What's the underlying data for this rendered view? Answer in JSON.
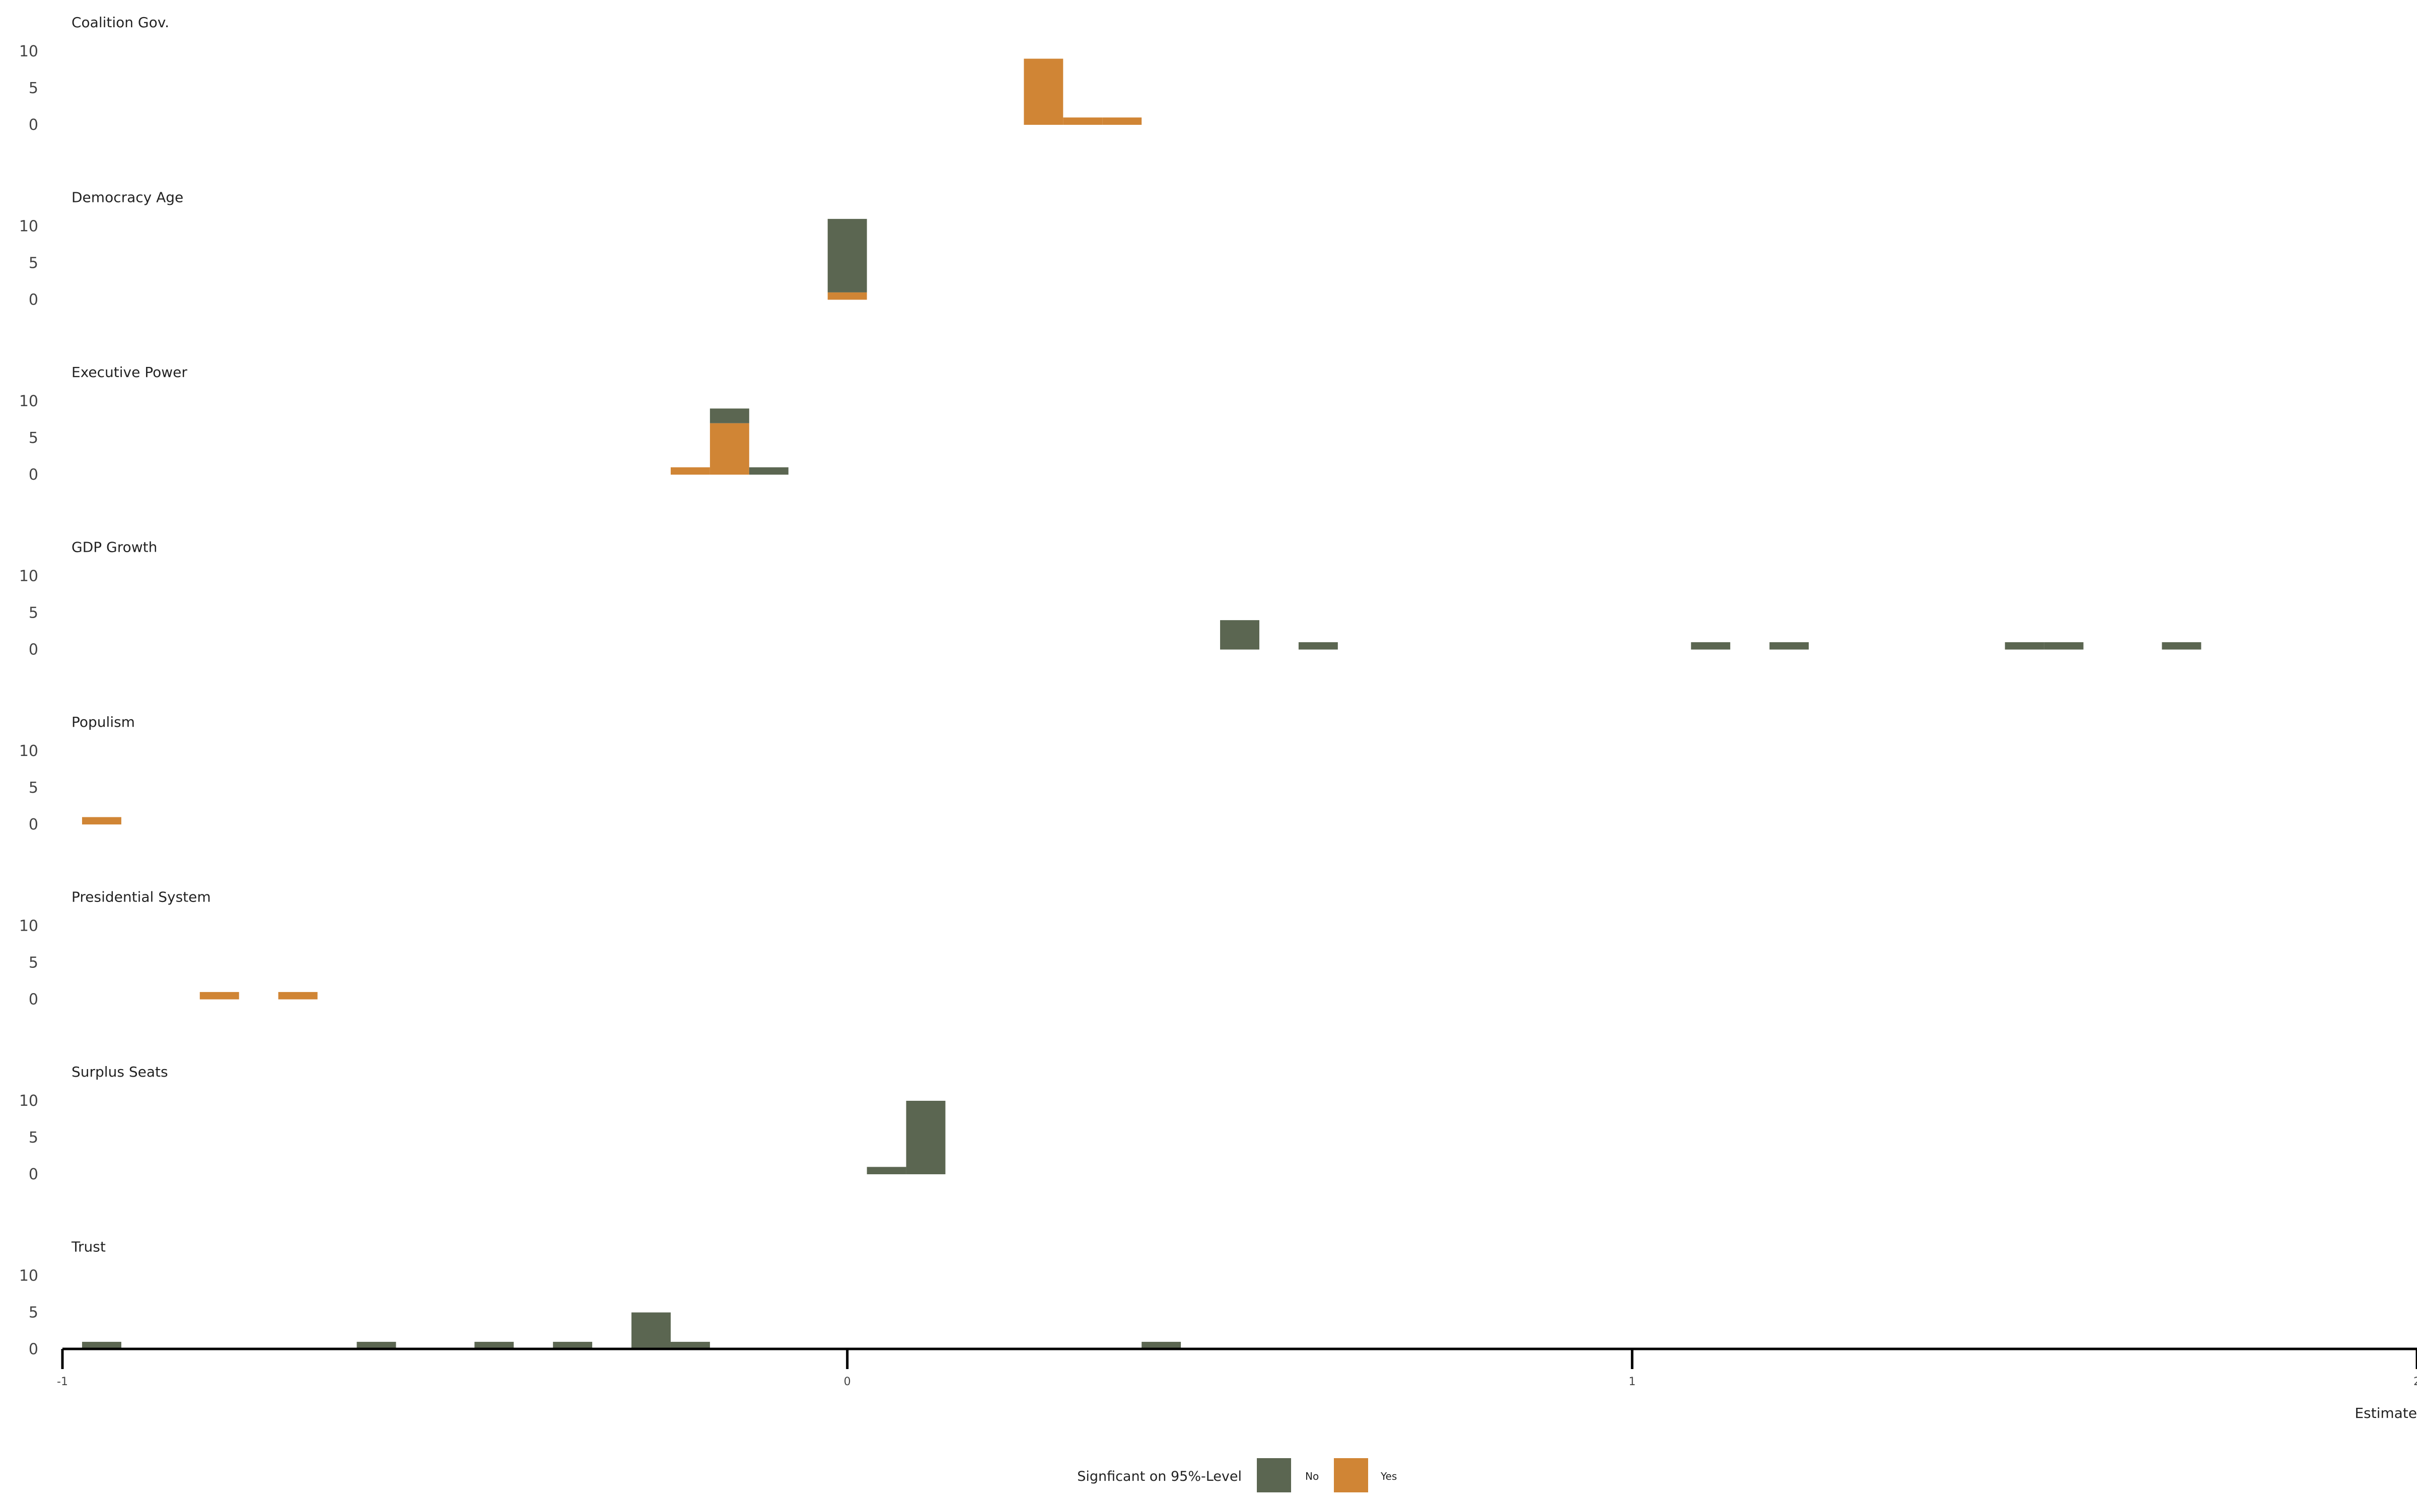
{
  "chart_data": {
    "type": "histogram",
    "facet_layout": "vertical",
    "bin_width": 0.05,
    "xlim": [
      -1,
      2
    ],
    "x_ticks": [
      "-1",
      "0",
      "1",
      "2"
    ],
    "y_ticks": [
      "0",
      "5",
      "10"
    ],
    "ylim": [
      0,
      11.5
    ],
    "xlabel": "Estimate",
    "ylabel": "",
    "legend": {
      "title": "Signficant on 95%-Level",
      "placement": "bottom-center",
      "entries": [
        {
          "label": "No",
          "color": "#5b6651"
        },
        {
          "label": "Yes",
          "color": "#d08535"
        }
      ]
    },
    "colors": {
      "No": "#5b6651",
      "Yes": "#d08535"
    },
    "panels": [
      {
        "title": "Coalition Gov.",
        "bins": [
          {
            "x0": 0.225,
            "x1": 0.275,
            "No": 0,
            "Yes": 9
          },
          {
            "x0": 0.275,
            "x1": 0.325,
            "No": 0,
            "Yes": 1
          },
          {
            "x0": 0.325,
            "x1": 0.375,
            "No": 0,
            "Yes": 1
          }
        ]
      },
      {
        "title": "Democracy Age",
        "bins": [
          {
            "x0": -0.025,
            "x1": 0.025,
            "No": 10,
            "Yes": 1
          }
        ]
      },
      {
        "title": "Executive Power",
        "bins": [
          {
            "x0": -0.225,
            "x1": -0.175,
            "No": 0,
            "Yes": 1
          },
          {
            "x0": -0.175,
            "x1": -0.125,
            "No": 2,
            "Yes": 7
          },
          {
            "x0": -0.125,
            "x1": -0.075,
            "No": 1,
            "Yes": 0
          }
        ]
      },
      {
        "title": "GDP Growth",
        "bins": [
          {
            "x0": 0.475,
            "x1": 0.525,
            "No": 4,
            "Yes": 0
          },
          {
            "x0": 0.575,
            "x1": 0.625,
            "No": 1,
            "Yes": 0
          },
          {
            "x0": 1.075,
            "x1": 1.125,
            "No": 1,
            "Yes": 0
          },
          {
            "x0": 1.175,
            "x1": 1.225,
            "No": 1,
            "Yes": 0
          },
          {
            "x0": 1.475,
            "x1": 1.525,
            "No": 1,
            "Yes": 0
          },
          {
            "x0": 1.525,
            "x1": 1.575,
            "No": 1,
            "Yes": 0
          },
          {
            "x0": 1.675,
            "x1": 1.725,
            "No": 1,
            "Yes": 0
          }
        ]
      },
      {
        "title": "Populism",
        "bins": [
          {
            "x0": -0.975,
            "x1": -0.925,
            "No": 0,
            "Yes": 1
          }
        ]
      },
      {
        "title": "Presidential System",
        "bins": [
          {
            "x0": -0.825,
            "x1": -0.775,
            "No": 0,
            "Yes": 1
          },
          {
            "x0": -0.725,
            "x1": -0.675,
            "No": 0,
            "Yes": 1
          }
        ]
      },
      {
        "title": "Surplus Seats",
        "bins": [
          {
            "x0": 0.025,
            "x1": 0.075,
            "No": 1,
            "Yes": 0
          },
          {
            "x0": 0.075,
            "x1": 0.125,
            "No": 10,
            "Yes": 0
          }
        ]
      },
      {
        "title": "Trust",
        "bins": [
          {
            "x0": -0.975,
            "x1": -0.925,
            "No": 1,
            "Yes": 0
          },
          {
            "x0": -0.625,
            "x1": -0.575,
            "No": 1,
            "Yes": 0
          },
          {
            "x0": -0.475,
            "x1": -0.425,
            "No": 1,
            "Yes": 0
          },
          {
            "x0": -0.375,
            "x1": -0.325,
            "No": 1,
            "Yes": 0
          },
          {
            "x0": -0.275,
            "x1": -0.225,
            "No": 5,
            "Yes": 0
          },
          {
            "x0": -0.225,
            "x1": -0.175,
            "No": 1,
            "Yes": 0
          },
          {
            "x0": 0.375,
            "x1": 0.425,
            "No": 1,
            "Yes": 0
          }
        ]
      }
    ]
  }
}
